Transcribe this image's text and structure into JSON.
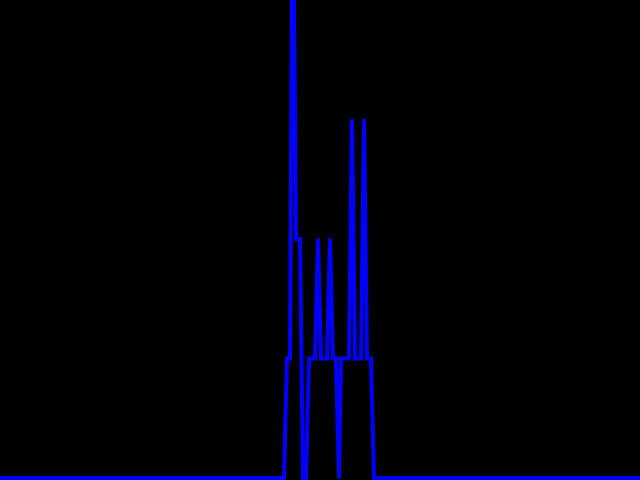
{
  "colors": {
    "background": "#000000",
    "trace": "#0000ff"
  },
  "chart_data": {
    "type": "line",
    "title": "",
    "xlabel": "",
    "ylabel": "",
    "xlim": [
      0,
      640
    ],
    "ylim": [
      0,
      4
    ],
    "grid": false,
    "legend": "none",
    "series": [
      {
        "values": [
          [
            0,
            0
          ],
          [
            284,
            0
          ],
          [
            287,
            1
          ],
          [
            290,
            1
          ],
          [
            292,
            4
          ],
          [
            294,
            4
          ],
          [
            296,
            2
          ],
          [
            300,
            2
          ],
          [
            303,
            0
          ],
          [
            306,
            0
          ],
          [
            309,
            1
          ],
          [
            315,
            1
          ],
          [
            318,
            2
          ],
          [
            321,
            1
          ],
          [
            327,
            1
          ],
          [
            330,
            2
          ],
          [
            333,
            1
          ],
          [
            336,
            1
          ],
          [
            339,
            0
          ],
          [
            341,
            1
          ],
          [
            349,
            1
          ],
          [
            352,
            3
          ],
          [
            355,
            1
          ],
          [
            361,
            1
          ],
          [
            364,
            3
          ],
          [
            367,
            1
          ],
          [
            371,
            1
          ],
          [
            374,
            0
          ],
          [
            640,
            0
          ]
        ]
      }
    ]
  }
}
